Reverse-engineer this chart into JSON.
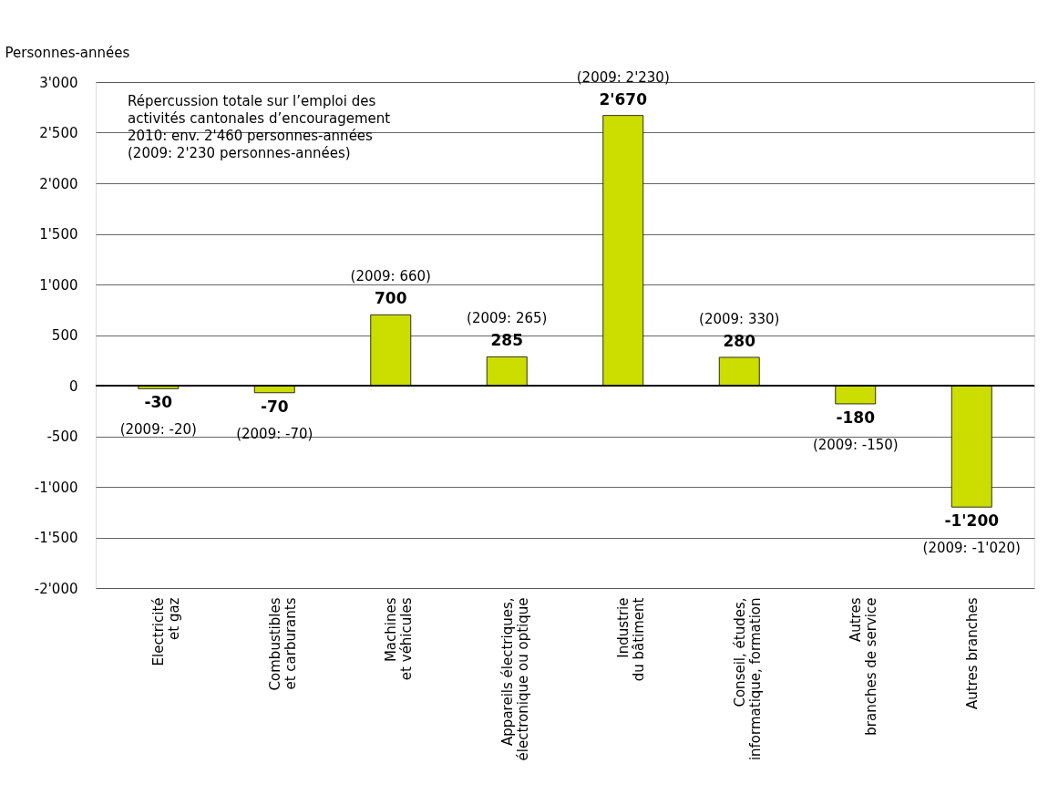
{
  "chart_data": {
    "type": "bar",
    "ylabel": "Personnes-années",
    "categories": [
      "Electricité\net gaz",
      "Combustibles\net carburants",
      "Machines\net véhicules",
      "Appareils électriques,\nélectronique ou optique",
      "Industrie\ndu bâtiment",
      "Conseil, études,\ninformatique, formation",
      "Autres\nbranches de service",
      "Autres branches"
    ],
    "values": [
      -30,
      -70,
      700,
      285,
      2670,
      280,
      -180,
      -1200
    ],
    "value_labels": [
      "-30",
      "-70",
      "700",
      "285",
      "2'670",
      "280",
      "-180",
      "-1'200"
    ],
    "color": "#ccdd00",
    "ylim": [
      -2000,
      3000
    ],
    "yticks": [
      {
        "value": -2000,
        "label": "-2'000"
      },
      {
        "value": -1500,
        "label": "-1'500"
      },
      {
        "value": -1000,
        "label": "-1'000"
      },
      {
        "value": -500,
        "label": "-500"
      },
      0,
      500,
      {
        "value": 1000,
        "label": "1'000"
      },
      {
        "value": 1500,
        "label": "1'500"
      },
      {
        "value": 2000,
        "label": "2'000"
      },
      {
        "value": 2500,
        "label": "2'500"
      },
      {
        "value": 3000,
        "label": "3'000"
      }
    ],
    "grid": "y",
    "ref_lines": [
      {
        "axis": "y",
        "value": 0,
        "color": "#000000"
      }
    ],
    "annotations": [
      "Répercussion totale sur l’emploi des\nactivités cantonales d’encouragement\n2010: env. 2'460 personnes-années\n(2009: 2'230 personnes-années)",
      {
        "text": "(2009: -20)",
        "x": "Electricité\net gaz",
        "y": -30
      },
      {
        "text": "(2009: -70)",
        "x": "Combustibles\net carburants",
        "y": -70
      },
      {
        "text": "(2009: 660)",
        "x": "Machines\net véhicules",
        "y": 700
      },
      {
        "text": "(2009: 265)",
        "x": "Appareils électriques,\nélectronique ou optique",
        "y": 285
      },
      {
        "text": "(2009: 2'230)",
        "x": "Industrie\ndu bâtiment",
        "y": 2670
      },
      {
        "text": "(2009: 330)",
        "x": "Conseil, études,\ninformatique, formation",
        "y": 280
      },
      {
        "text": "(2009: -150)",
        "x": "Autres\nbranches de service",
        "y": -180
      },
      {
        "text": "(2009: -1'020)",
        "x": "Autres branches",
        "y": -1200
      }
    ]
  }
}
